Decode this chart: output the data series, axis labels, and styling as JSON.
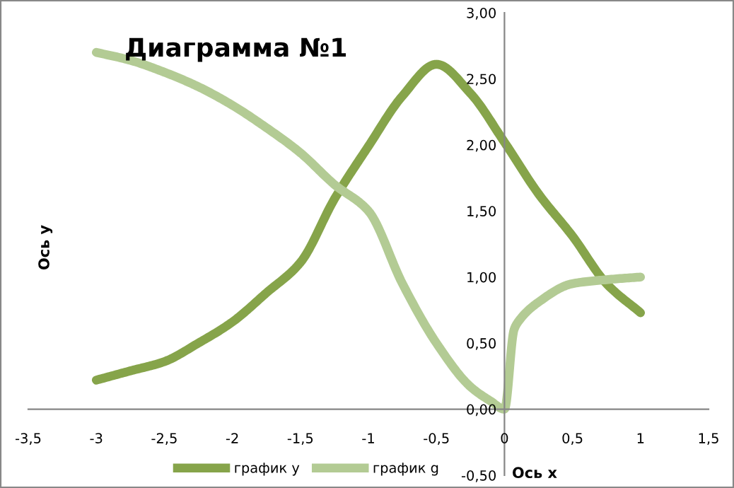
{
  "chart_data": {
    "type": "line",
    "title": "Диаграмма №1",
    "xlabel": "Ось x",
    "ylabel": "Ось y",
    "xlim": [
      -3.5,
      1.5
    ],
    "ylim": [
      -0.5,
      3
    ],
    "xticks": [
      {
        "value": -3.5,
        "label": "-3,5"
      },
      {
        "value": -3,
        "label": "-3"
      },
      {
        "value": -2.5,
        "label": "-2,5"
      },
      {
        "value": -2,
        "label": "-2"
      },
      {
        "value": -1.5,
        "label": "-1,5"
      },
      {
        "value": -1,
        "label": "-1"
      },
      {
        "value": -0.5,
        "label": "-0,5"
      },
      {
        "value": 0,
        "label": "0"
      },
      {
        "value": 0.5,
        "label": "0,5"
      },
      {
        "value": 1,
        "label": "1"
      },
      {
        "value": 1.5,
        "label": "1,5"
      }
    ],
    "yticks": [
      {
        "value": -0.5,
        "label": "-0,50"
      },
      {
        "value": 0,
        "label": "0,00"
      },
      {
        "value": 0.5,
        "label": "0,50"
      },
      {
        "value": 1,
        "label": "1,00"
      },
      {
        "value": 1.5,
        "label": "1,50"
      },
      {
        "value": 2,
        "label": "2,00"
      },
      {
        "value": 2.5,
        "label": "2,50"
      },
      {
        "value": 3,
        "label": "3,00"
      }
    ],
    "grid": false,
    "legend": "bottom",
    "marker": "none",
    "line_style": "solid",
    "series": [
      {
        "name": "график y",
        "color": "#86a44a",
        "x": [
          -3,
          -2.75,
          -2.5,
          -2.25,
          -2,
          -1.75,
          -1.5,
          -1.25,
          -1,
          -0.75,
          -0.5,
          -0.25,
          0,
          0.25,
          0.5,
          0.75,
          1
        ],
        "values": [
          0.22,
          0.29,
          0.36,
          0.5,
          0.66,
          0.88,
          1.11,
          1.59,
          1.99,
          2.37,
          2.61,
          2.39,
          2.02,
          1.63,
          1.31,
          0.95,
          0.73
        ]
      },
      {
        "name": "график g",
        "color": "#b3cb94",
        "x": [
          -3,
          -2.75,
          -2.5,
          -2.25,
          -2,
          -1.75,
          -1.5,
          -1.25,
          -1,
          -0.75,
          -0.5,
          -0.25,
          -0.1,
          0,
          0.07,
          0.1,
          0.25,
          0.5,
          0.75,
          1
        ],
        "values": [
          2.7,
          2.64,
          2.55,
          2.44,
          2.3,
          2.13,
          1.94,
          1.7,
          1.5,
          0.95,
          0.5,
          0.17,
          0.06,
          0,
          0.6,
          0.66,
          0.81,
          0.95,
          0.98,
          1.0
        ]
      }
    ]
  }
}
